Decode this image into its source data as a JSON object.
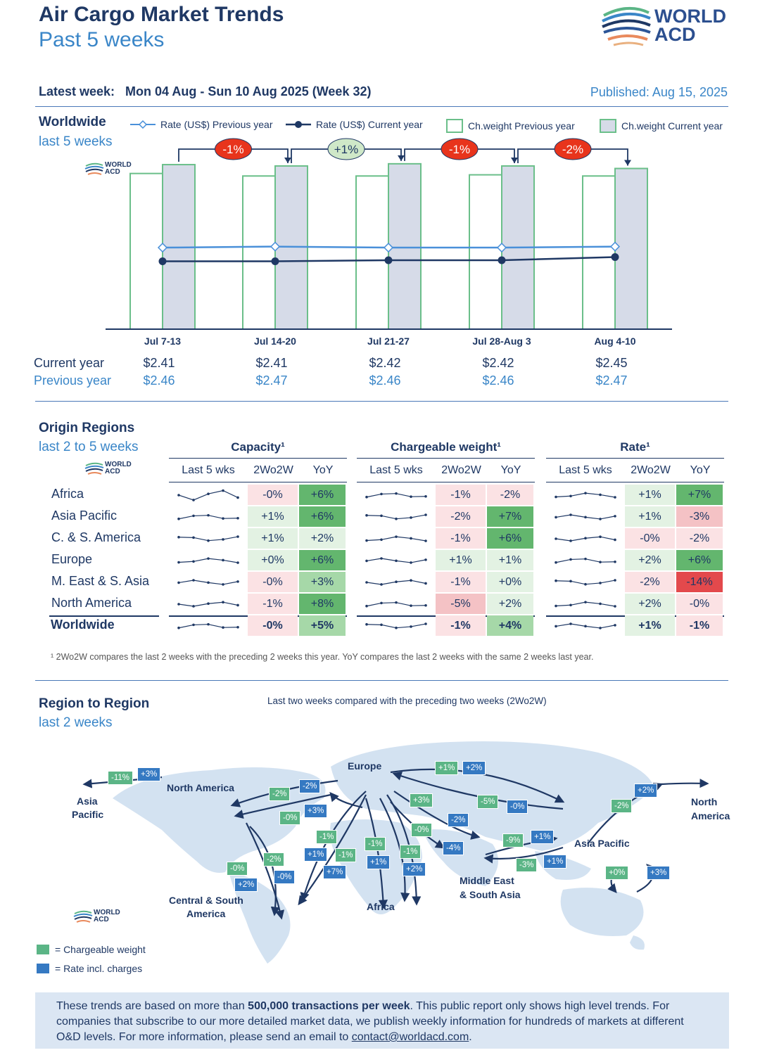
{
  "header": {
    "title": "Air Cargo Market Trends",
    "subtitle": "Past 5 weeks",
    "logo_text": "WORLD ACD",
    "logo_line1": "WORLD",
    "logo_line2": "ACD",
    "latest_week": "Latest week:   Mon 04 Aug - Sun 10 Aug 2025 (Week 32)",
    "published": "Published: Aug 15, 2025"
  },
  "worldwide": {
    "title": "Worldwide",
    "subtitle": "last 5 weeks",
    "legend": {
      "rate_prev": "Rate (US$) Previous year",
      "rate_curr": "Rate (US$) Current year",
      "cw_prev": "Ch.weight Previous year",
      "cw_curr": "Ch.weight Current year"
    },
    "row_labels": {
      "current": "Current year",
      "previous": "Previous year"
    },
    "changes": [
      "-1%",
      "+1%",
      "-1%",
      "-2%"
    ]
  },
  "chart_data": {
    "type": "bar",
    "categories": [
      "Jul 7-13",
      "Jul 14-20",
      "Jul 21-27",
      "Jul 28-Aug 3",
      "Aug 4-10"
    ],
    "series": [
      {
        "name": "Ch.weight Previous year",
        "type": "bar",
        "values": [
          0.93,
          0.915,
          0.915,
          0.922,
          0.915
        ]
      },
      {
        "name": "Ch.weight Current year",
        "type": "bar",
        "values": [
          0.983,
          0.975,
          0.988,
          0.975,
          0.96
        ]
      },
      {
        "name": "Rate (US$) Previous year",
        "type": "line",
        "values": [
          2.46,
          2.47,
          2.46,
          2.46,
          2.47
        ],
        "labels": [
          "$2.46",
          "$2.47",
          "$2.46",
          "$2.46",
          "$2.47"
        ]
      },
      {
        "name": "Rate (US$) Current year",
        "type": "line",
        "values": [
          2.41,
          2.41,
          2.42,
          2.42,
          2.45
        ],
        "labels": [
          "$2.41",
          "$2.41",
          "$2.42",
          "$2.42",
          "$2.45"
        ]
      }
    ],
    "week_over_week_changes": [
      "-1%",
      "+1%",
      "-1%",
      "-2%"
    ],
    "colors": {
      "cw_prev_fill": "#ffffff",
      "cw_prev_stroke": "#6bbf8a",
      "cw_curr_fill": "#d6dbe8",
      "cw_curr_stroke": "#6bbf8a",
      "rate_prev": "#4a90d9",
      "rate_curr": "#1f3864"
    }
  },
  "origin": {
    "title": "Origin Regions",
    "subtitle": "last 2 to 5 weeks",
    "groups": [
      "Capacity¹",
      "Chargeable weight¹",
      "Rate¹"
    ],
    "col_headers": [
      "Last 5 wks",
      "2Wo2W",
      "YoY"
    ],
    "rows": [
      {
        "name": "Africa",
        "cap": [
          "-0%",
          "+6%"
        ],
        "cw": [
          "-1%",
          "-2%"
        ],
        "rate": [
          "+1%",
          "+7%"
        ]
      },
      {
        "name": "Asia Pacific",
        "cap": [
          "+1%",
          "+6%"
        ],
        "cw": [
          "-2%",
          "+7%"
        ],
        "rate": [
          "+1%",
          "-3%"
        ]
      },
      {
        "name": "C. & S. America",
        "cap": [
          "+1%",
          "+2%"
        ],
        "cw": [
          "-1%",
          "+6%"
        ],
        "rate": [
          "-0%",
          "-2%"
        ]
      },
      {
        "name": "Europe",
        "cap": [
          "+0%",
          "+6%"
        ],
        "cw": [
          "+1%",
          "+1%"
        ],
        "rate": [
          "+2%",
          "+6%"
        ]
      },
      {
        "name": "M. East & S. Asia",
        "cap": [
          "-0%",
          "+3%"
        ],
        "cw": [
          "-1%",
          "+0%"
        ],
        "rate": [
          "-2%",
          "-14%"
        ]
      },
      {
        "name": "North America",
        "cap": [
          "-1%",
          "+8%"
        ],
        "cw": [
          "-5%",
          "+2%"
        ],
        "rate": [
          "+2%",
          "-0%"
        ]
      },
      {
        "name": "Worldwide",
        "cap": [
          "-0%",
          "+5%"
        ],
        "cw": [
          "-1%",
          "+4%"
        ],
        "rate": [
          "+1%",
          "-1%"
        ]
      }
    ],
    "footnote": "¹ 2Wo2W compares the last 2 weeks with the preceding 2 weeks this year. YoY compares the last 2 weeks with the same 2 weeks last year."
  },
  "region": {
    "title": "Region to Region",
    "subtitle": "last 2 weeks",
    "note": "Last two weeks compared with the preceding two weeks (2Wo2W)",
    "labels": {
      "asia_pacific_left_1": "Asia",
      "asia_pacific_left_2": "Pacific",
      "north_america": "North America",
      "europe": "Europe",
      "north_america_right_1": "North",
      "north_america_right_2": "America",
      "asia_pacific": "Asia Pacific",
      "mesa_1": "Middle East",
      "mesa_2": "& South Asia",
      "africa": "Africa",
      "csa_1": "Central & South",
      "csa_2": "America"
    },
    "badges": [
      "-11%",
      "+3%",
      "-2%",
      "-2%",
      "-0%",
      "+3%",
      "-1%",
      "+1%",
      "-1%",
      "+7%",
      "-0%",
      "+2%",
      "-2%",
      "-0%",
      "-1%",
      "+1%",
      "-1%",
      "+2%",
      "+3%",
      "-0%",
      "-2%",
      "-4%",
      "+1%",
      "+2%",
      "-5%",
      "-0%",
      "-9%",
      "+1%",
      "-3%",
      "+1%",
      "-2%",
      "+2%",
      "+0%",
      "+3%"
    ],
    "legend_cw": "=  Chargeable weight",
    "legend_rate": "=  Rate incl. charges"
  },
  "bottom": {
    "text_a": "These trends are based on more than ",
    "text_bold": "500,000 transactions per week",
    "text_b": ". This public report only shows high level trends. For companies that subscribe to our more detailed market data, we publish weekly information for hundreds of markets at different O&D levels. For more information, please send an email to ",
    "email": "contact@worldacd.com",
    "text_c": "."
  }
}
